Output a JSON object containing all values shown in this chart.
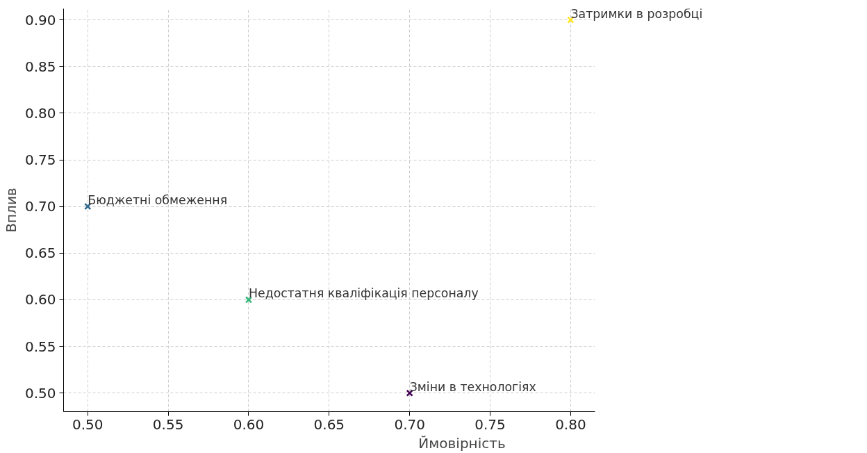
{
  "chart_data": {
    "type": "scatter",
    "xlabel": "Ймовірність",
    "ylabel": "Вплив",
    "x": [
      0.7,
      0.5,
      0.6,
      0.8
    ],
    "values": [
      0.5,
      0.7,
      0.6,
      0.9
    ],
    "colors": [
      "#440154",
      "#31688e",
      "#35b779",
      "#fde725"
    ],
    "marker": "cross",
    "xlim": [
      0.485,
      0.815
    ],
    "ylim": [
      0.48,
      0.912
    ],
    "xticks": [
      {
        "value": 0.5,
        "label": "0.50"
      },
      0.55,
      {
        "value": 0.6,
        "label": "0.60"
      },
      0.65,
      {
        "value": 0.7,
        "label": "0.70"
      },
      0.75,
      {
        "value": 0.8,
        "label": "0.80"
      }
    ],
    "yticks": [
      {
        "value": 0.5,
        "label": "0.50"
      },
      0.55,
      {
        "value": 0.6,
        "label": "0.60"
      },
      0.65,
      {
        "value": 0.7,
        "label": "0.70"
      },
      0.75,
      {
        "value": 0.8,
        "label": "0.80"
      },
      0.85,
      {
        "value": 0.9,
        "label": "0.90"
      }
    ],
    "grid": true,
    "annotations": [
      {
        "text": "Зміни в технологіях",
        "x": 0.7,
        "y": 0.5
      },
      {
        "text": "Бюджетні обмеження",
        "x": 0.5,
        "y": 0.7
      },
      {
        "text": "Недостатня кваліфікація персоналу",
        "x": 0.6,
        "y": 0.6
      },
      {
        "text": "Затримки в розробці",
        "x": 0.8,
        "y": 0.9
      }
    ]
  }
}
